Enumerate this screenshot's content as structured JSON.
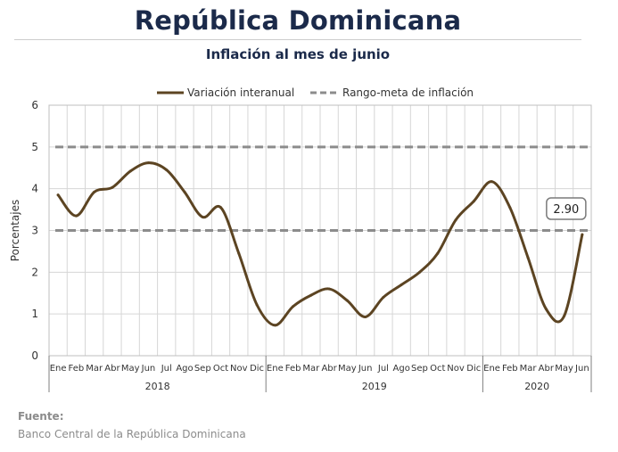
{
  "title": "República Dominicana",
  "subtitle": "Inflación al mes de junio",
  "source_label": "Fuente:",
  "source_text": "Banco Central de la República Dominicana",
  "chart_data": {
    "type": "line",
    "ylabel": "Porcentajes",
    "ylim": [
      0,
      6
    ],
    "yticks": [
      0,
      1,
      2,
      3,
      4,
      5,
      6
    ],
    "grid": true,
    "legend_position": "top",
    "months": [
      "Ene",
      "Feb",
      "Mar",
      "Abr",
      "May",
      "Jun",
      "Jul",
      "Ago",
      "Sep",
      "Oct",
      "Nov",
      "Dic",
      "Ene",
      "Feb",
      "Mar",
      "Abr",
      "May",
      "Jun",
      "Jul",
      "Ago",
      "Sep",
      "Oct",
      "Nov",
      "Dic",
      "Ene",
      "Feb",
      "Mar",
      "Abr",
      "May",
      "Jun"
    ],
    "years": [
      {
        "label": "2018",
        "months": 12
      },
      {
        "label": "2019",
        "months": 12
      },
      {
        "label": "2020",
        "months": 6
      }
    ],
    "series": [
      {
        "name": "Variación interanual",
        "color": "#5c4422",
        "style": "solid",
        "values": [
          3.85,
          3.35,
          3.92,
          4.03,
          4.42,
          4.62,
          4.45,
          3.92,
          3.32,
          3.55,
          2.45,
          1.22,
          0.73,
          1.18,
          1.45,
          1.6,
          1.32,
          0.93,
          1.4,
          1.7,
          2.0,
          2.45,
          3.25,
          3.7,
          4.17,
          3.55,
          2.35,
          1.12,
          0.95,
          2.9
        ]
      },
      {
        "name": "Rango-meta de inflación",
        "color": "#8c8c8c",
        "style": "dashed",
        "bands": [
          3,
          5
        ]
      }
    ],
    "annotation": {
      "text": "2.90",
      "index": 29
    }
  }
}
